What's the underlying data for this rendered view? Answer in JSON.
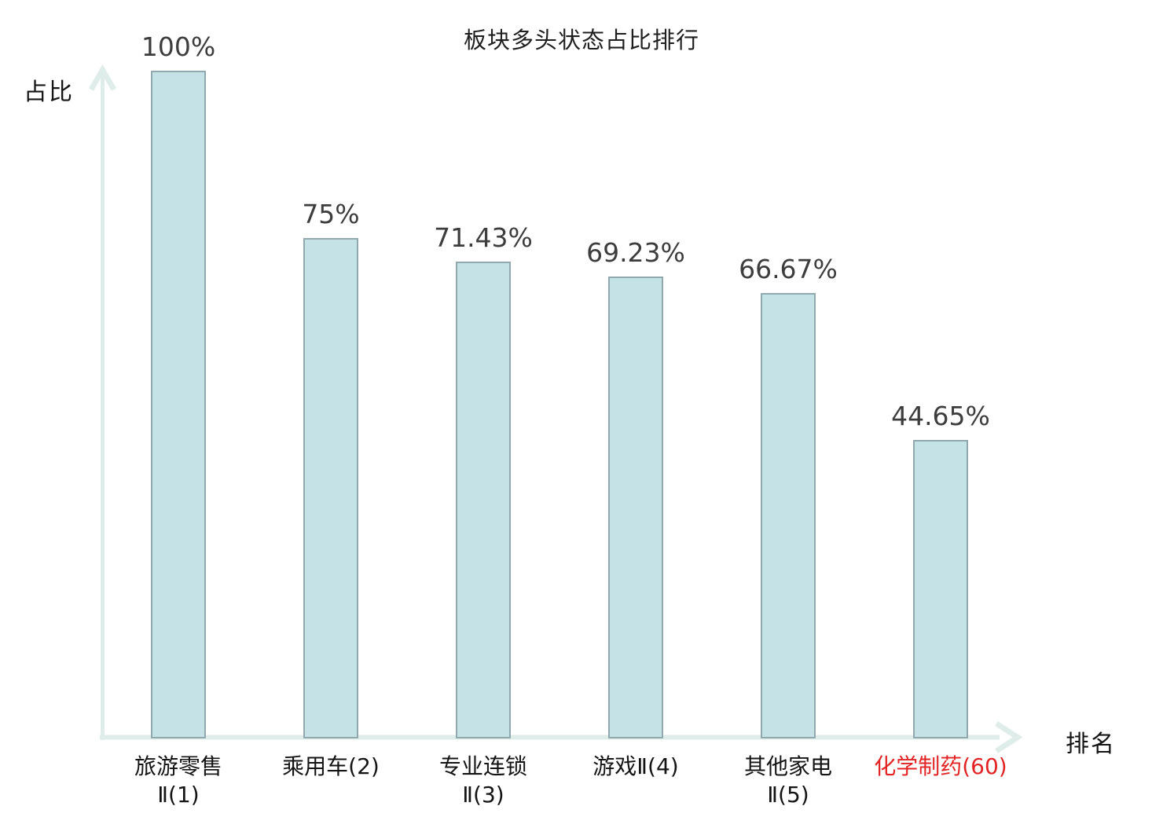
{
  "chart_data": {
    "type": "bar",
    "title": "板块多头状态占比排行",
    "xlabel": "排名",
    "ylabel": "占比",
    "categories": [
      "旅游零售Ⅱ(1)",
      "乘用车(2)",
      "专业连锁Ⅱ(3)",
      "游戏Ⅱ(4)",
      "其他家电Ⅱ(5)",
      "化学制药(60)"
    ],
    "category_lines": [
      [
        "旅游零售",
        "Ⅱ(1)"
      ],
      [
        "乘用车(2)"
      ],
      [
        "专业连锁",
        "Ⅱ(3)"
      ],
      [
        "游戏Ⅱ(4)"
      ],
      [
        "其他家电",
        "Ⅱ(5)"
      ],
      [
        "化学制药(60)"
      ]
    ],
    "values": [
      100,
      75,
      71.43,
      69.23,
      66.67,
      44.65
    ],
    "value_labels": [
      "100%",
      "75%",
      "71.43%",
      "69.23%",
      "66.67%",
      "44.65%"
    ],
    "highlight_index": 5,
    "ylim": [
      0,
      100
    ],
    "grid": false,
    "legend": null,
    "colors": {
      "bar_fill": "#c5e2e6",
      "bar_border": "#92a8af",
      "axis": "#deede9",
      "value_text": "#3d3d3d",
      "tick_text": "#141414",
      "highlight_text": "#e22424",
      "title_text": "#1f1f1f"
    }
  }
}
